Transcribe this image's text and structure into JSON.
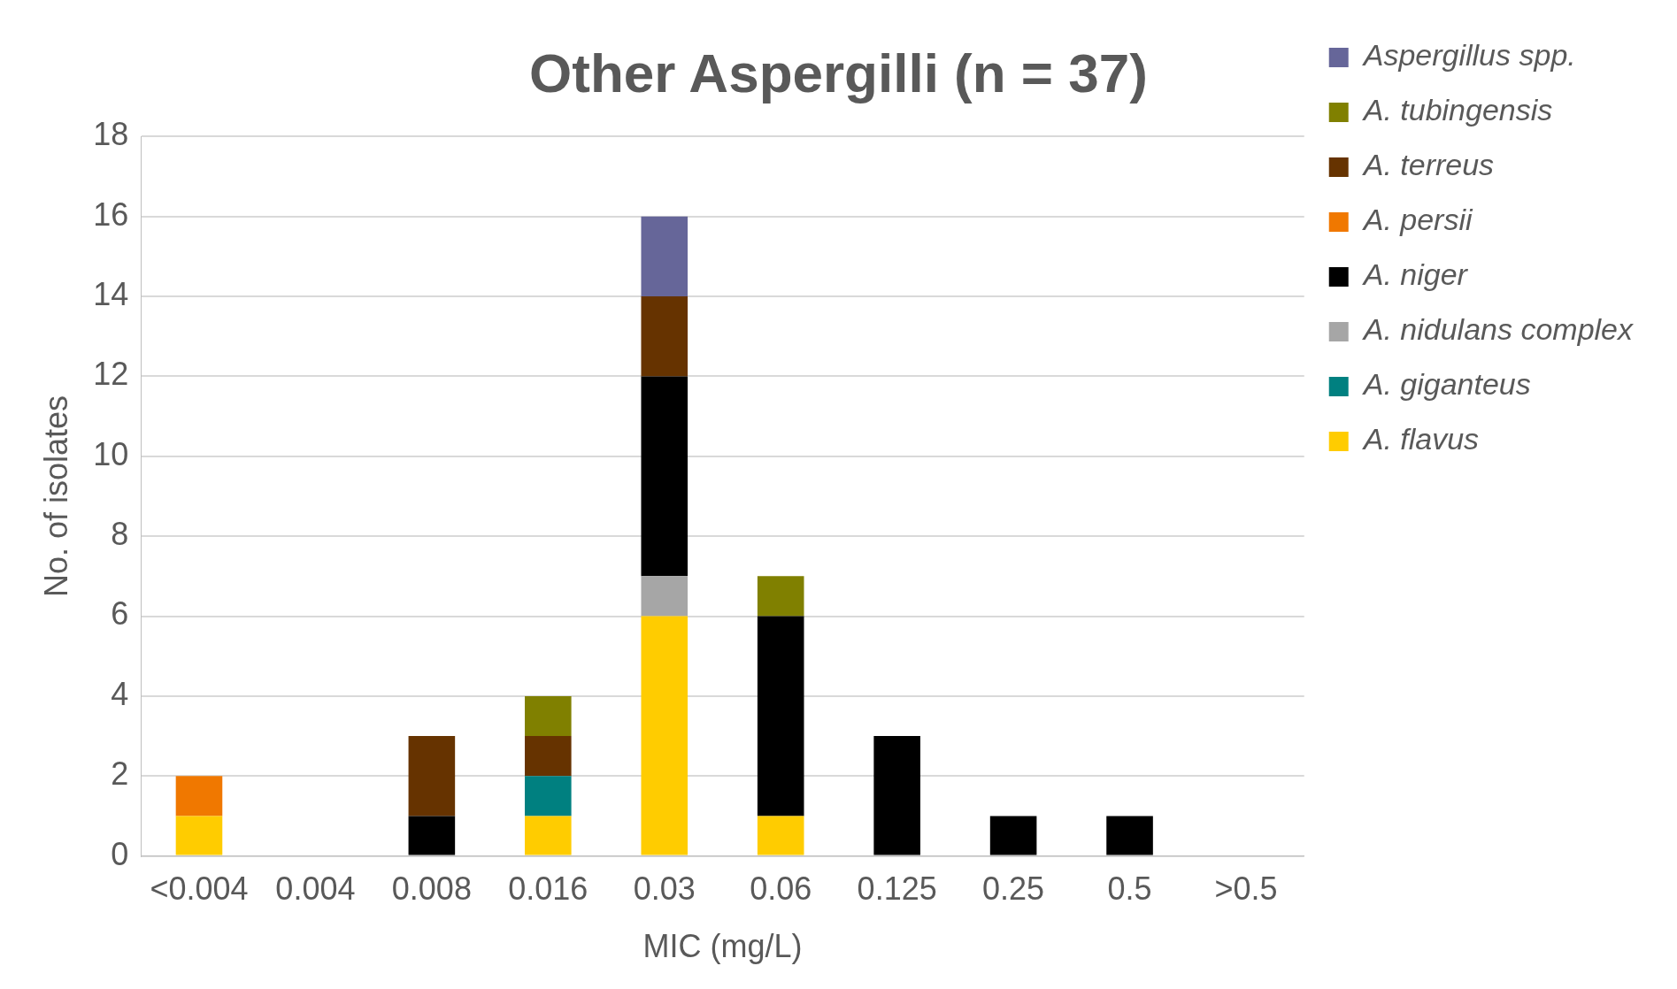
{
  "chart_data": {
    "type": "bar",
    "title": "Other Aspergilli (n = 37)",
    "xlabel": "MIC (mg/L)",
    "ylabel": "No. of isolates",
    "categories": [
      "<0.004",
      "0.004",
      "0.008",
      "0.016",
      "0.03",
      "0.06",
      "0.125",
      "0.25",
      "0.5",
      ">0.5"
    ],
    "stacked": true,
    "ylim": [
      0,
      18
    ],
    "yticks": [
      0,
      2,
      4,
      6,
      8,
      10,
      12,
      14,
      16,
      18
    ],
    "grid": "y",
    "legend": "top right",
    "series": [
      {
        "name": "A. flavus",
        "color": "#ffcc00",
        "values": [
          1,
          0,
          0,
          1,
          6,
          1,
          0,
          0,
          0,
          0
        ]
      },
      {
        "name": "A. giganteus",
        "color": "#008080",
        "values": [
          0,
          0,
          0,
          1,
          0,
          0,
          0,
          0,
          0,
          0
        ]
      },
      {
        "name": "A. nidulans complex",
        "color": "#a6a6a6",
        "values": [
          0,
          0,
          0,
          0,
          1,
          0,
          0,
          0,
          0,
          0
        ]
      },
      {
        "name": "A. niger",
        "color": "#000000",
        "values": [
          0,
          0,
          1,
          0,
          5,
          5,
          3,
          1,
          1,
          0
        ]
      },
      {
        "name": "A. persii",
        "color": "#f07800",
        "values": [
          1,
          0,
          0,
          0,
          0,
          0,
          0,
          0,
          0,
          0
        ]
      },
      {
        "name": "A. terreus",
        "color": "#663300",
        "values": [
          0,
          0,
          2,
          1,
          2,
          0,
          0,
          0,
          0,
          0
        ]
      },
      {
        "name": "A. tubingensis",
        "color": "#808000",
        "values": [
          0,
          0,
          0,
          1,
          0,
          1,
          0,
          0,
          0,
          0
        ]
      },
      {
        "name": "Aspergillus spp.",
        "color": "#666699",
        "values": [
          0,
          0,
          0,
          0,
          2,
          0,
          0,
          0,
          0,
          0
        ]
      }
    ]
  }
}
